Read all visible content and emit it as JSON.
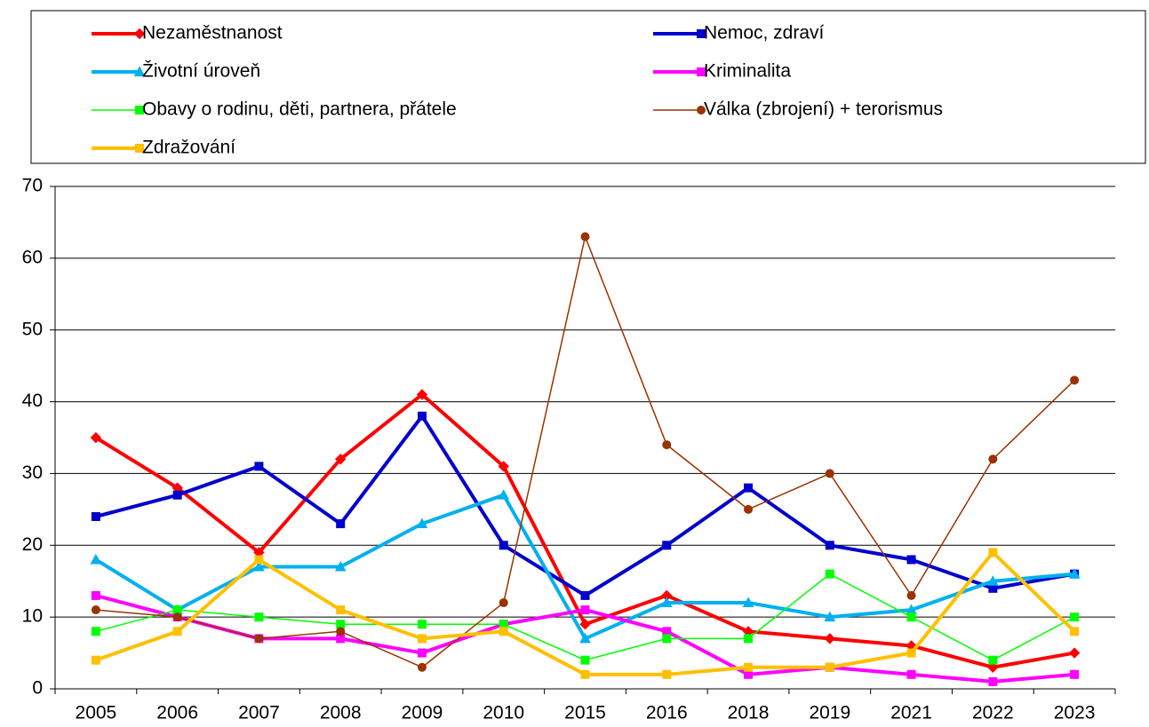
{
  "chart_data": {
    "type": "line",
    "categories": [
      "2005",
      "2006",
      "2007",
      "2008",
      "2009",
      "2010",
      "2015",
      "2016",
      "2018",
      "2019",
      "2021",
      "2022",
      "2023"
    ],
    "series": [
      {
        "name": "Nezaměstnanost",
        "color": "#ff0000",
        "marker": "diamond",
        "values": [
          35,
          28,
          19,
          32,
          41,
          31,
          9,
          13,
          8,
          7,
          6,
          3,
          5
        ]
      },
      {
        "name": "Nemoc, zdraví",
        "color": "#0000cc",
        "marker": "square",
        "values": [
          24,
          27,
          31,
          23,
          38,
          20,
          13,
          20,
          28,
          20,
          18,
          14,
          16
        ]
      },
      {
        "name": "Životní úroveň",
        "color": "#00b0f0",
        "marker": "triangle",
        "values": [
          18,
          11,
          17,
          17,
          23,
          27,
          7,
          12,
          12,
          10,
          11,
          15,
          16
        ]
      },
      {
        "name": "Kriminalita",
        "color": "#ff00ff",
        "marker": "square",
        "values": [
          13,
          10,
          7,
          7,
          5,
          9,
          11,
          8,
          2,
          3,
          2,
          1,
          2
        ]
      },
      {
        "name": "Obavy o rodinu, děti, partnera, přátele",
        "color": "#00ff00",
        "marker": "square",
        "values": [
          8,
          11,
          10,
          9,
          9,
          9,
          4,
          7,
          7,
          16,
          10,
          4,
          10
        ]
      },
      {
        "name": "Válka (zbrojení) + terorismus",
        "color": "#993300",
        "marker": "circle",
        "values": [
          11,
          10,
          7,
          8,
          3,
          12,
          63,
          34,
          25,
          30,
          13,
          32,
          43
        ]
      },
      {
        "name": "Zdražování",
        "color": "#ffc000",
        "marker": "square",
        "values": [
          4,
          8,
          18,
          11,
          7,
          8,
          2,
          2,
          3,
          3,
          5,
          19,
          8
        ]
      }
    ],
    "ylim": [
      0,
      70
    ],
    "yticks": [
      0,
      10,
      20,
      30,
      40,
      50,
      60,
      70
    ],
    "grid": true,
    "legend": "top"
  }
}
